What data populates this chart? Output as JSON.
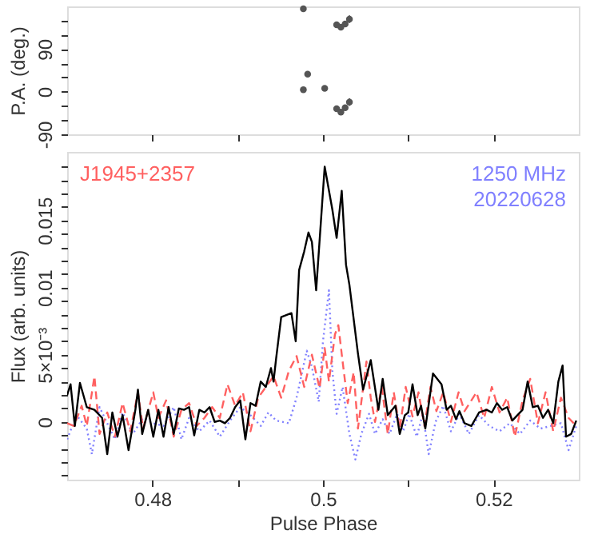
{
  "chart_data": [
    {
      "type": "scatter",
      "ylabel": "P.A. (deg.)",
      "xlim": [
        0.47,
        0.53
      ],
      "ylim": [
        -90,
        180
      ],
      "marker": "circle",
      "grid": false,
      "tick_labels": "y",
      "xticks": [
        {
          "value": 0.48,
          "label": null
        },
        {
          "value": 0.49,
          "label": null
        },
        {
          "value": 0.5,
          "label": null
        },
        {
          "value": 0.51,
          "label": null
        },
        {
          "value": 0.52,
          "label": null
        }
      ],
      "yticks": [
        {
          "value": 150,
          "label": null
        },
        {
          "value": 120,
          "label": null
        },
        90,
        {
          "value": 60,
          "label": null
        },
        {
          "value": 30,
          "label": null
        },
        0,
        {
          "value": -30,
          "label": null
        },
        {
          "value": -60,
          "label": null
        },
        -90
      ],
      "series": [
        {
          "color": "#555555",
          "x": [
            0.4977,
            0.4982,
            0.4977,
            0.5002,
            0.5016,
            0.5021,
            0.5026,
            0.5031,
            0.5016,
            0.5021,
            0.5026,
            0.5031
          ],
          "values": [
            4,
            37,
            175,
            7,
            141,
            136,
            143,
            153,
            -36,
            -43,
            -34,
            -22
          ],
          "errors": [
            6,
            6,
            5,
            5,
            5,
            5,
            6,
            8,
            5,
            5,
            6,
            8
          ]
        }
      ]
    },
    {
      "type": "line",
      "xlabel": "Pulse Phase",
      "ylabel": "Flux (arb. units)",
      "xlim": [
        0.47,
        0.53
      ],
      "ylim": [
        -0.0043,
        0.0201
      ],
      "grid": false,
      "annotations": [
        "J1945+2357",
        "1250 MHz",
        "20220628"
      ],
      "xticks": [
        0.48,
        {
          "value": 0.49,
          "label": null
        },
        0.5,
        {
          "value": 0.51,
          "label": null
        },
        0.52
      ],
      "yticks": [
        {
          "value": -0.004,
          "label": null
        },
        {
          "value": -0.003,
          "label": null
        },
        {
          "value": -0.002,
          "label": null
        },
        {
          "value": -0.001,
          "label": null
        },
        0,
        {
          "value": 0.001,
          "label": null
        },
        {
          "value": 0.002,
          "label": null
        },
        {
          "value": 0.003,
          "label": null
        },
        {
          "value": 0.004,
          "label": null
        },
        {
          "value": 0.005,
          "label": "5×10⁻³"
        },
        {
          "value": 0.006,
          "label": null
        },
        {
          "value": 0.007,
          "label": null
        },
        {
          "value": 0.008,
          "label": null
        },
        {
          "value": 0.009,
          "label": null
        },
        0.01,
        {
          "value": 0.011,
          "label": null
        },
        {
          "value": 0.012,
          "label": null
        },
        {
          "value": 0.013,
          "label": null
        },
        {
          "value": 0.014,
          "label": null
        },
        0.015,
        {
          "value": 0.016,
          "label": null
        },
        {
          "value": 0.017,
          "label": null
        },
        {
          "value": 0.018,
          "label": null
        },
        {
          "value": 0.019,
          "label": null
        }
      ],
      "series": [
        {
          "color": "#8080ff",
          "line_style": "dotted",
          "x": [
            0.47,
            0.4711,
            0.4723,
            0.4729,
            0.4738,
            0.4747,
            0.4756,
            0.4765,
            0.4777,
            0.4789,
            0.4801,
            0.4813,
            0.4825,
            0.4834,
            0.4843,
            0.4855,
            0.4867,
            0.4879,
            0.4891,
            0.4903,
            0.4915,
            0.4927,
            0.4936,
            0.4945,
            0.496,
            0.4969,
            0.4981,
            0.4987,
            0.4995,
            0.5,
            0.5007,
            0.5011,
            0.5016,
            0.5023,
            0.5031,
            0.5038,
            0.5045,
            0.5054,
            0.5061,
            0.507,
            0.5078,
            0.5087,
            0.5094,
            0.5101,
            0.511,
            0.5117,
            0.5124,
            0.5132,
            0.5141,
            0.515,
            0.516,
            0.5171,
            0.5183,
            0.5195,
            0.5207,
            0.5219,
            0.5231,
            0.5243,
            0.5255,
            0.5267,
            0.5279,
            0.5288,
            0.5297
          ],
          "values": [
            -0.0013,
            0.0005,
            -0.0005,
            -0.0024,
            0.0011,
            -0.0001,
            -0.0013,
            0.0007,
            -0.0009,
            0.0003,
            -0.0001,
            -0.0003,
            0.0011,
            -0.0013,
            0.0003,
            -0.0007,
            0.0001,
            -0.0011,
            0.0001,
            0.0011,
            0.0005,
            -0.0003,
            0.0007,
            0.0001,
            -0.0001,
            0.0018,
            0.0053,
            0.0041,
            0.0015,
            0.006,
            0.0098,
            0.0038,
            0.0006,
            0.0026,
            -0.0009,
            -0.0028,
            -0.0009,
            0.0006,
            -0.0009,
            0.0002,
            -0.0009,
            0.0006,
            -0.0007,
            0.0006,
            -0.0011,
            0.0006,
            -0.0024,
            0.0,
            0.0012,
            -0.0007,
            0.0006,
            -0.0009,
            0.0005,
            -0.0003,
            -0.0007,
            -0.0001,
            -0.0009,
            0.0001,
            -0.0005,
            -0.0003,
            -0.0001,
            -0.0021,
            -0.0003
          ]
        },
        {
          "color": "#ff6060",
          "line_style": "dashed",
          "x": [
            0.47,
            0.4708,
            0.4717,
            0.4723,
            0.4732,
            0.4738,
            0.4747,
            0.4756,
            0.4765,
            0.4774,
            0.4783,
            0.4789,
            0.4801,
            0.4807,
            0.4816,
            0.4825,
            0.4834,
            0.4843,
            0.4852,
            0.4861,
            0.487,
            0.4879,
            0.4888,
            0.4897,
            0.4906,
            0.4915,
            0.4924,
            0.4933,
            0.4942,
            0.4951,
            0.496,
            0.4969,
            0.4978,
            0.4987,
            0.4996,
            0.5002,
            0.5007,
            0.5014,
            0.5018,
            0.5023,
            0.5029,
            0.5036,
            0.5041,
            0.5051,
            0.5056,
            0.5061,
            0.5069,
            0.5076,
            0.5083,
            0.509,
            0.5097,
            0.5105,
            0.5112,
            0.5119,
            0.5126,
            0.5133,
            0.5141,
            0.515,
            0.5159,
            0.5166,
            0.518,
            0.5189,
            0.5198,
            0.5207,
            0.5216,
            0.5225,
            0.5234,
            0.5243,
            0.5252,
            0.5261,
            0.527,
            0.5279,
            0.5288,
            0.5297
          ],
          "values": [
            -0.0001,
            -0.0003,
            0.0012,
            -0.0003,
            0.0034,
            -0.0009,
            0.0007,
            -0.0011,
            0.0014,
            -0.0007,
            0.0022,
            -0.0005,
            0.0022,
            0.0003,
            0.0016,
            -0.0011,
            0.0009,
            0.0014,
            -0.0003,
            0.0003,
            0.0011,
            0.0003,
            0.0028,
            0.0012,
            0.0022,
            -0.0007,
            0.0018,
            0.0026,
            0.0034,
            0.0018,
            0.0038,
            0.0049,
            0.0026,
            0.005,
            0.0025,
            0.0055,
            0.003,
            0.0065,
            0.0072,
            0.0045,
            0.0014,
            0.0037,
            -0.0005,
            0.0045,
            0.0018,
            0.0,
            0.0026,
            -0.0009,
            0.0022,
            -0.0005,
            0.0026,
            0.0004,
            0.0022,
            -0.0003,
            0.0026,
            0.0008,
            0.0022,
            0.0,
            0.0022,
            0.0008,
            0.0022,
            0.0003,
            0.0026,
            0.0007,
            0.0018,
            -0.0011,
            0.0016,
            0.0032,
            -0.0001,
            0.0022,
            -0.0007,
            0.0018,
            0.0003,
            -0.0003
          ]
        },
        {
          "color": "#000000",
          "line_style": "solid",
          "x": [
            0.47,
            0.4704,
            0.4709,
            0.4715,
            0.4723,
            0.4732,
            0.4741,
            0.4747,
            0.4753,
            0.4759,
            0.4765,
            0.4772,
            0.478,
            0.4783,
            0.4788,
            0.4795,
            0.4801,
            0.4807,
            0.4813,
            0.4819,
            0.4825,
            0.4831,
            0.4837,
            0.4843,
            0.4849,
            0.4855,
            0.4861,
            0.4867,
            0.4873,
            0.4879,
            0.4885,
            0.4891,
            0.4897,
            0.4903,
            0.4909,
            0.4915,
            0.4921,
            0.4927,
            0.4933,
            0.4939,
            0.4942,
            0.4945,
            0.4951,
            0.4963,
            0.4968,
            0.4972,
            0.4978,
            0.4983,
            0.4987,
            0.4992,
            0.5002,
            0.5011,
            0.5016,
            0.5022,
            0.5027,
            0.5031,
            0.5041,
            0.5047,
            0.5056,
            0.5065,
            0.507,
            0.5076,
            0.5085,
            0.509,
            0.5096,
            0.51,
            0.5105,
            0.5111,
            0.5115,
            0.512,
            0.5129,
            0.5139,
            0.5145,
            0.515,
            0.5156,
            0.516,
            0.5166,
            0.5174,
            0.5183,
            0.5192,
            0.5198,
            0.5204,
            0.521,
            0.5216,
            0.5222,
            0.5228,
            0.5234,
            0.524,
            0.5246,
            0.5252,
            0.5258,
            0.5264,
            0.527,
            0.5276,
            0.5281,
            0.5285,
            0.5291,
            0.5297
          ],
          "values": [
            0.002,
            0.0028,
            -0.0003,
            0.0029,
            0.0011,
            0.0009,
            0.0003,
            -0.0024,
            0.0007,
            -0.0011,
            0.0005,
            -0.0021,
            0.0009,
            0.0024,
            -0.0009,
            0.0009,
            -0.0011,
            0.0009,
            -0.0011,
            0.0011,
            -0.0009,
            0.001,
            0.0009,
            0.0011,
            -0.001,
            0.0009,
            0.0007,
            0.0011,
            0.0,
            0.0001,
            -0.0001,
            0.0003,
            0.0011,
            0.0016,
            -0.0013,
            0.0014,
            0.0012,
            0.003,
            0.0026,
            0.004,
            0.003,
            0.0047,
            0.0078,
            0.0081,
            0.006,
            0.0113,
            0.0127,
            0.0141,
            0.0134,
            0.0098,
            0.019,
            0.0158,
            0.0137,
            0.0172,
            0.0117,
            0.0102,
            0.0051,
            0.0024,
            0.0046,
            0.0009,
            0.0032,
            0.0005,
            0.0012,
            -0.0009,
            0.0005,
            0.0007,
            0.0028,
            0.0005,
            0.0012,
            -0.0005,
            0.0036,
            0.0028,
            0.0009,
            0.0012,
            0.0002,
            0.0008,
            -0.0001,
            -0.0003,
            0.0007,
            0.0009,
            0.0007,
            0.0014,
            0.0009,
            0.0011,
            0.0001,
            0.0005,
            0.0009,
            0.003,
            0.0011,
            0.0012,
            0.0003,
            0.0009,
            -0.0001,
            0.003,
            0.0042,
            -0.0011,
            -0.0009,
            0.0001
          ]
        }
      ]
    }
  ]
}
